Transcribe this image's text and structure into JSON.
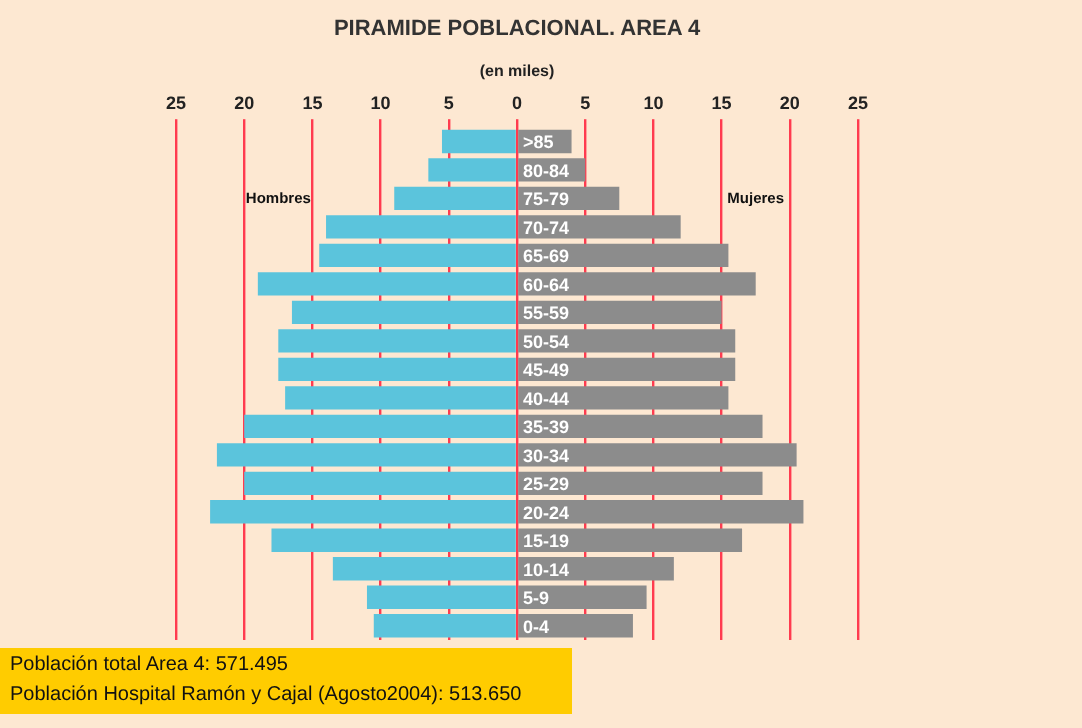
{
  "chart_data": {
    "type": "bar",
    "orientation": "horizontal",
    "title": "PIRAMIDE POBLACIONAL. AREA 4",
    "subtitle": "(en miles)",
    "categories": [
      ">85",
      "80-84",
      "75-79",
      "70-74",
      "65-69",
      "60-64",
      "55-59",
      "50-54",
      "45-49",
      "40-44",
      "35-39",
      "30-34",
      "25-29",
      "20-24",
      "15-19",
      "10-14",
      "5-9",
      "0-4"
    ],
    "series": [
      {
        "name": "Hombres",
        "color": "#5bc4dc",
        "values": [
          -5.5,
          -6.5,
          -9,
          -14,
          -14.5,
          -19,
          -16.5,
          -17.5,
          -17.5,
          -17,
          -20,
          -22,
          -20,
          -22.5,
          -18,
          -13.5,
          -11,
          -10.5
        ]
      },
      {
        "name": "Mujeres",
        "color": "#8c8c8c",
        "values": [
          4,
          5,
          7.5,
          12,
          15.5,
          17.5,
          15,
          16,
          16,
          15.5,
          18,
          20.5,
          18,
          21,
          16.5,
          11.5,
          9.5,
          8.5
        ]
      }
    ],
    "xlim": [
      -25,
      25
    ],
    "xticks": [
      {
        "value": -25,
        "label": "25"
      },
      {
        "value": -20,
        "label": "20"
      },
      {
        "value": -15,
        "label": "15"
      },
      {
        "value": -10,
        "label": "10"
      },
      {
        "value": -5,
        "label": "5"
      },
      0,
      5,
      10,
      15,
      20,
      25
    ],
    "grid": "x",
    "legend": false,
    "stacked": true,
    "annotations": [
      "Población total Area 4: 571.495",
      "Población Hospital Ramón y Cajal (Agosto2004): 513.650"
    ]
  }
}
